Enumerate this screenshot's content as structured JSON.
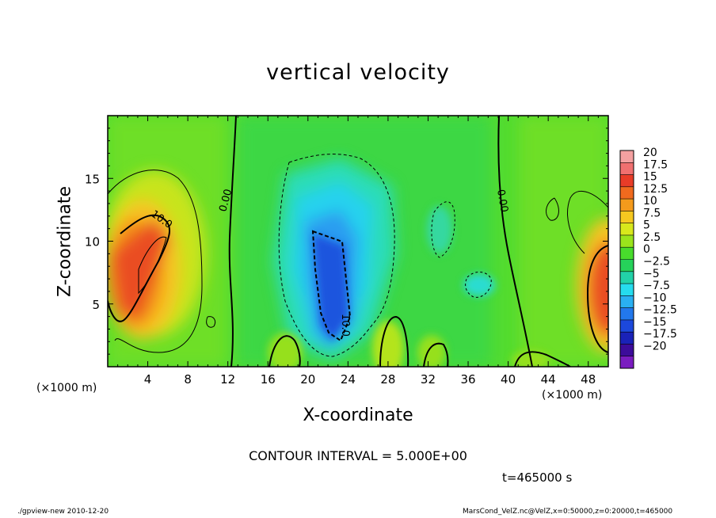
{
  "chart_data": {
    "type": "heatmap",
    "title": "vertical velocity",
    "xlabel": "X-coordinate",
    "ylabel": "Z-coordinate",
    "x_unit_label": "(×1000 m)",
    "x_ticks": [
      "4",
      "8",
      "12",
      "16",
      "20",
      "24",
      "28",
      "32",
      "36",
      "40",
      "44",
      "48"
    ],
    "x_tick_values": [
      4,
      8,
      12,
      16,
      20,
      24,
      28,
      32,
      36,
      40,
      44,
      48
    ],
    "y_ticks": [
      "5",
      "10",
      "15"
    ],
    "y_tick_values": [
      5,
      10,
      15
    ],
    "xlim": [
      0,
      50
    ],
    "ylim": [
      0,
      20
    ],
    "colorbar": {
      "labels": [
        "20",
        "17.5",
        "15",
        "12.5",
        "10",
        "7.5",
        "5",
        "2.5",
        "0",
        "−2.5",
        "−5",
        "−7.5",
        "−10",
        "−12.5",
        "−15",
        "−17.5",
        "−20"
      ],
      "colors": [
        "#f4a0a0",
        "#f07070",
        "#e83c28",
        "#f06a1e",
        "#f49a1c",
        "#f6c820",
        "#d8e81c",
        "#9ae41c",
        "#48dc2c",
        "#26d25a",
        "#22d2a8",
        "#26dcee",
        "#2ab0f2",
        "#2278ec",
        "#1c48dc",
        "#1a22b8",
        "#3c0c9a",
        "#7a1cc0"
      ]
    },
    "contour_labels": [
      "10.0",
      "0.00",
      "0.00",
      "10.0"
    ],
    "grid": false,
    "legend": "right"
  },
  "contour_interval": "CONTOUR INTERVAL = 5.000E+00",
  "time_label": "t=465000 s",
  "footer_left": "./gpview-new  2010-12-20",
  "footer_right": "MarsCond_VelZ.nc@VelZ,x=0:50000,z=0:20000,t=465000"
}
